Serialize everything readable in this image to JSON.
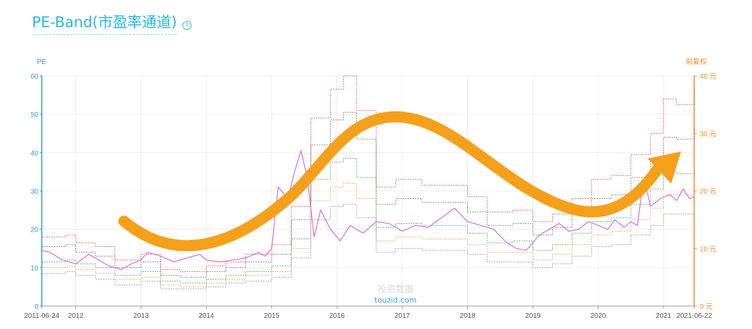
{
  "title": "PE-Band(市盈率通道)",
  "help_icon": "question-circle-icon",
  "watermark": {
    "line1": "投资数据",
    "line2": "touzid.com"
  },
  "chart_data": {
    "type": "line",
    "x_ticks": [
      "2011-06-24",
      "2012",
      "2013",
      "2014",
      "2015",
      "2016",
      "2017",
      "2018",
      "2019",
      "2020",
      "2021",
      "2021-06-22"
    ],
    "left_axis": {
      "label": "PE",
      "ticks": [
        "0",
        "10",
        "20",
        "30",
        "40",
        "50",
        "60"
      ],
      "ylim": [
        0,
        60
      ],
      "color": "#2f9be0"
    },
    "right_axis": {
      "label": "前复权",
      "ticks": [
        "0 元",
        "10 元",
        "20 元",
        "30 元",
        "40 元"
      ],
      "ylim": [
        0,
        40
      ],
      "color": "#f28c28"
    },
    "grid": true,
    "band_colors": [
      "#e2566e",
      "#7a7a7a",
      "#4fae5e",
      "#f2a65a",
      "#9b8fd9"
    ],
    "price_color": "#d86bd8",
    "arrow_color": "#f5a01a",
    "band_x": [
      2011.48,
      2011.85,
      2012.0,
      2012.3,
      2012.6,
      2013.0,
      2013.3,
      2013.6,
      2014.0,
      2014.3,
      2014.6,
      2015.0,
      2015.3,
      2015.6,
      2015.9,
      2016.1,
      2016.3,
      2016.6,
      2016.9,
      2017.3,
      2017.7,
      2018.0,
      2018.3,
      2018.7,
      2019.0,
      2019.3,
      2019.6,
      2019.9,
      2020.2,
      2020.5,
      2020.8,
      2021.0,
      2021.2,
      2021.47
    ],
    "bands": [
      {
        "values": [
          18.0,
          18.5,
          16.5,
          15.5,
          12.0,
          13.5,
          9.5,
          9.0,
          10.5,
          11.5,
          13.5,
          16.0,
          26.0,
          49.0,
          56.5,
          60.0,
          51.0,
          31.0,
          33.0,
          31.5,
          31.5,
          28.5,
          24.5,
          25.0,
          22.0,
          24.0,
          28.0,
          33.0,
          34.0,
          39.5,
          45.0,
          54.0,
          52.5,
          57.0
        ]
      },
      {
        "values": [
          15.5,
          16.0,
          14.0,
          13.0,
          10.0,
          11.5,
          8.0,
          7.5,
          9.0,
          10.0,
          11.5,
          13.5,
          22.5,
          42.0,
          48.5,
          50.5,
          43.5,
          26.5,
          28.0,
          27.0,
          27.0,
          24.5,
          21.0,
          21.5,
          18.5,
          20.5,
          24.0,
          28.0,
          29.0,
          33.5,
          38.5,
          44.0,
          43.5,
          46.5
        ]
      },
      {
        "values": [
          11.5,
          12.0,
          11.0,
          10.0,
          8.0,
          9.0,
          6.5,
          6.0,
          7.0,
          8.0,
          9.0,
          10.5,
          17.5,
          33.0,
          37.5,
          38.5,
          33.5,
          20.5,
          21.5,
          21.0,
          21.0,
          19.0,
          16.5,
          17.0,
          14.5,
          16.0,
          19.0,
          22.0,
          23.0,
          26.5,
          30.5,
          35.0,
          34.5,
          36.5
        ]
      },
      {
        "values": [
          10.0,
          10.5,
          9.5,
          8.5,
          7.0,
          7.5,
          5.5,
          5.0,
          6.0,
          7.0,
          8.0,
          9.0,
          15.0,
          27.5,
          31.0,
          32.0,
          28.0,
          17.0,
          18.0,
          17.5,
          17.5,
          16.0,
          14.0,
          14.0,
          12.0,
          13.5,
          16.0,
          18.5,
          19.5,
          22.5,
          25.5,
          29.0,
          29.0,
          31.0
        ]
      },
      {
        "values": [
          8.5,
          9.0,
          8.0,
          7.0,
          5.5,
          6.5,
          4.5,
          4.5,
          5.0,
          6.0,
          6.5,
          7.5,
          12.5,
          22.5,
          26.0,
          26.5,
          23.0,
          14.0,
          15.0,
          14.5,
          14.5,
          13.5,
          11.5,
          11.5,
          10.0,
          11.0,
          13.0,
          15.5,
          16.0,
          18.5,
          21.0,
          24.0,
          24.0,
          25.5
        ]
      }
    ],
    "pe_x": [
      2011.48,
      2011.6,
      2011.8,
      2012.0,
      2012.2,
      2012.35,
      2012.5,
      2012.7,
      2012.85,
      2013.0,
      2013.1,
      2013.3,
      2013.5,
      2013.7,
      2013.9,
      2014.0,
      2014.2,
      2014.4,
      2014.6,
      2014.8,
      2014.9,
      2015.0,
      2015.1,
      2015.25,
      2015.35,
      2015.45,
      2015.55,
      2015.65,
      2015.75,
      2015.9,
      2016.05,
      2016.2,
      2016.4,
      2016.6,
      2016.8,
      2017.0,
      2017.2,
      2017.4,
      2017.6,
      2017.8,
      2018.0,
      2018.2,
      2018.4,
      2018.6,
      2018.75,
      2018.9,
      2019.0,
      2019.1,
      2019.25,
      2019.4,
      2019.55,
      2019.7,
      2019.85,
      2020.0,
      2020.15,
      2020.25,
      2020.4,
      2020.5,
      2020.6,
      2020.7,
      2020.8,
      2020.95,
      2021.1,
      2021.2,
      2021.3,
      2021.4,
      2021.47
    ],
    "pe_values": [
      14.5,
      14.0,
      12.0,
      11.0,
      13.5,
      12.0,
      10.5,
      9.5,
      11.0,
      12.0,
      14.0,
      13.0,
      11.5,
      12.5,
      13.5,
      12.0,
      11.5,
      12.0,
      12.5,
      14.0,
      13.0,
      15.0,
      31.0,
      28.0,
      35.0,
      40.5,
      33.0,
      18.0,
      25.0,
      20.0,
      17.0,
      21.0,
      19.0,
      22.0,
      21.5,
      19.5,
      21.0,
      20.5,
      23.0,
      25.5,
      22.0,
      21.0,
      20.0,
      16.5,
      15.0,
      14.5,
      16.5,
      18.5,
      20.0,
      21.5,
      19.5,
      20.0,
      22.0,
      21.0,
      20.0,
      22.5,
      20.5,
      22.0,
      21.0,
      33.5,
      26.0,
      28.0,
      29.0,
      27.5,
      30.5,
      28.0,
      28.5
    ]
  }
}
